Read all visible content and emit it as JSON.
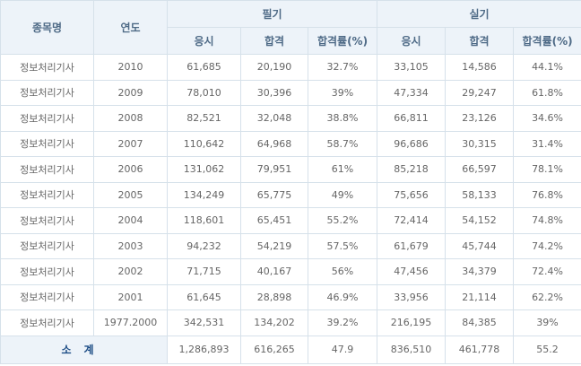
{
  "table": {
    "headers": {
      "subject": "종목명",
      "year": "연도",
      "written": "필기",
      "practical": "실기",
      "applicants": "응시",
      "passed": "합격",
      "pass_rate": "합격률(%)"
    },
    "rows": [
      {
        "subject": "정보처리기사",
        "year": "2010",
        "w_app": "61,685",
        "w_pass": "20,190",
        "w_rate": "32.7%",
        "p_app": "33,105",
        "p_pass": "14,586",
        "p_rate": "44.1%"
      },
      {
        "subject": "정보처리기사",
        "year": "2009",
        "w_app": "78,010",
        "w_pass": "30,396",
        "w_rate": "39%",
        "p_app": "47,334",
        "p_pass": "29,247",
        "p_rate": "61.8%"
      },
      {
        "subject": "정보처리기사",
        "year": "2008",
        "w_app": "82,521",
        "w_pass": "32,048",
        "w_rate": "38.8%",
        "p_app": "66,811",
        "p_pass": "23,126",
        "p_rate": "34.6%"
      },
      {
        "subject": "정보처리기사",
        "year": "2007",
        "w_app": "110,642",
        "w_pass": "64,968",
        "w_rate": "58.7%",
        "p_app": "96,686",
        "p_pass": "30,315",
        "p_rate": "31.4%"
      },
      {
        "subject": "정보처리기사",
        "year": "2006",
        "w_app": "131,062",
        "w_pass": "79,951",
        "w_rate": "61%",
        "p_app": "85,218",
        "p_pass": "66,597",
        "p_rate": "78.1%"
      },
      {
        "subject": "정보처리기사",
        "year": "2005",
        "w_app": "134,249",
        "w_pass": "65,775",
        "w_rate": "49%",
        "p_app": "75,656",
        "p_pass": "58,133",
        "p_rate": "76.8%"
      },
      {
        "subject": "정보처리기사",
        "year": "2004",
        "w_app": "118,601",
        "w_pass": "65,451",
        "w_rate": "55.2%",
        "p_app": "72,414",
        "p_pass": "54,152",
        "p_rate": "74.8%"
      },
      {
        "subject": "정보처리기사",
        "year": "2003",
        "w_app": "94,232",
        "w_pass": "54,219",
        "w_rate": "57.5%",
        "p_app": "61,679",
        "p_pass": "45,744",
        "p_rate": "74.2%"
      },
      {
        "subject": "정보처리기사",
        "year": "2002",
        "w_app": "71,715",
        "w_pass": "40,167",
        "w_rate": "56%",
        "p_app": "47,456",
        "p_pass": "34,379",
        "p_rate": "72.4%"
      },
      {
        "subject": "정보처리기사",
        "year": "2001",
        "w_app": "61,645",
        "w_pass": "28,898",
        "w_rate": "46.9%",
        "p_app": "33,956",
        "p_pass": "21,114",
        "p_rate": "62.2%"
      },
      {
        "subject": "정보처리기사",
        "year": "1977.2000",
        "w_app": "342,531",
        "w_pass": "134,202",
        "w_rate": "39.2%",
        "p_app": "216,195",
        "p_pass": "84,385",
        "p_rate": "39%"
      }
    ],
    "total": {
      "label": "소계",
      "w_app": "1,286,893",
      "w_pass": "616,265",
      "w_rate": "47.9",
      "p_app": "836,510",
      "p_pass": "461,778",
      "p_rate": "55.2"
    }
  },
  "colors": {
    "header_bg": "#edf3f9",
    "header_text": "#4e6a86",
    "total_label_text": "#1d4d86",
    "border": "#d6e1ea",
    "cell_text": "#666666"
  }
}
